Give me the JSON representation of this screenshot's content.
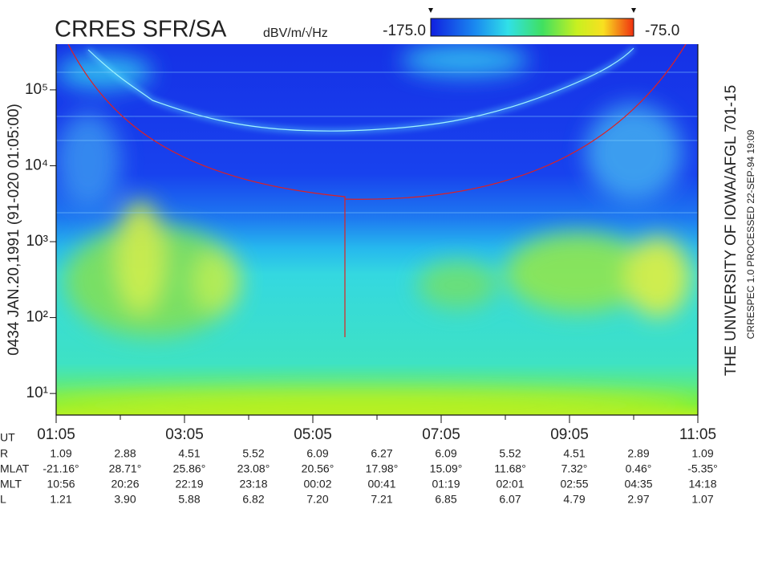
{
  "chart_data": {
    "type": "spectrogram",
    "title": "CRRES SFR/SA",
    "colorbar_label": "dBV/m/√Hz",
    "clim": [
      -175,
      -75
    ],
    "colorbar_ticks": [
      {
        "value": -175,
        "label": "-175.0"
      },
      {
        "value": -75,
        "label": "-75.0"
      }
    ],
    "left_label": "0434   JAN.20,1991   (91-020 01:05:00)",
    "right_label": "THE UNIVERSITY OF IOWA/AFGL 701-15",
    "right_sublabel": "CRRESPEC 1.0   PROCESSED 22-SEP-94  19:09",
    "ylog": true,
    "ylim": [
      5.2,
      400000
    ],
    "yticks": [
      {
        "value": 10,
        "label": "10¹"
      },
      {
        "value": 100,
        "label": "10²"
      },
      {
        "value": 1000,
        "label": "10³"
      },
      {
        "value": 10000,
        "label": "10⁴"
      },
      {
        "value": 100000,
        "label": "10⁵"
      }
    ],
    "xlim": [
      0,
      600
    ],
    "xticks": [
      {
        "value": 0,
        "label": "01:05"
      },
      {
        "value": 120,
        "label": "03:05"
      },
      {
        "value": 240,
        "label": "05:05"
      },
      {
        "value": 360,
        "label": "07:05"
      },
      {
        "value": 480,
        "label": "09:05"
      },
      {
        "value": 600,
        "label": "11:05"
      }
    ],
    "xminorticks": [
      60,
      180,
      300,
      420,
      540
    ],
    "xaxis_label": "UT",
    "ephemeris": [
      {
        "label": "R",
        "values": [
          "1.09",
          "2.88",
          "4.51",
          "5.52",
          "6.09",
          "6.27",
          "6.09",
          "5.52",
          "4.51",
          "2.89",
          "1.09"
        ]
      },
      {
        "label": "MLAT",
        "values": [
          "-21.16°",
          "28.71°",
          "25.86°",
          "23.08°",
          "20.56°",
          "17.98°",
          "15.09°",
          "11.68°",
          "7.32°",
          "0.46°",
          "-5.35°"
        ]
      },
      {
        "label": "MLT",
        "values": [
          "10:56",
          "20:26",
          "22:19",
          "23:18",
          "00:02",
          "00:41",
          "01:19",
          "02:01",
          "02:55",
          "04:35",
          "14:18"
        ]
      },
      {
        "label": "L",
        "values": [
          "1.21",
          "3.90",
          "5.88",
          "6.82",
          "7.20",
          "7.21",
          "6.85",
          "6.07",
          "4.79",
          "2.97",
          "1.07"
        ]
      }
    ]
  }
}
